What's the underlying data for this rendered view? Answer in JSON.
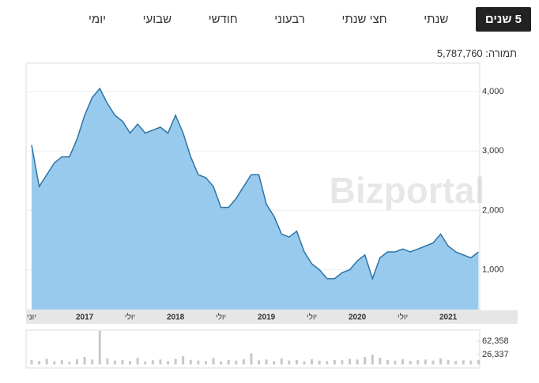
{
  "tabs": [
    {
      "label": "יומי",
      "active": false
    },
    {
      "label": "שבועי",
      "active": false
    },
    {
      "label": "חודשי",
      "active": false
    },
    {
      "label": "רבעוני",
      "active": false
    },
    {
      "label": "חצי שנתי",
      "active": false
    },
    {
      "label": "שנתי",
      "active": false
    },
    {
      "label": "5 שנים",
      "active": true
    }
  ],
  "turnover": {
    "label": "תמורה:",
    "value": "5,787,760"
  },
  "watermark": "Bizportal",
  "chart_data": [
    {
      "type": "area",
      "color": "#2f73a6",
      "fill": "#8cc4ea",
      "categories": [
        "יוני",
        null,
        null,
        null,
        null,
        null,
        null,
        "2017",
        null,
        null,
        null,
        null,
        null,
        "יולי",
        null,
        null,
        null,
        null,
        null,
        "2018",
        null,
        null,
        null,
        null,
        null,
        "יולי",
        null,
        null,
        null,
        null,
        null,
        "2019",
        null,
        null,
        null,
        null,
        null,
        "יולי",
        null,
        null,
        null,
        null,
        null,
        "2020",
        null,
        null,
        null,
        null,
        null,
        "יולי",
        null,
        null,
        null,
        null,
        null,
        "2021",
        null,
        null,
        null,
        null
      ],
      "values": [
        3100,
        2400,
        2600,
        2800,
        2900,
        2900,
        3200,
        3600,
        3900,
        4050,
        3800,
        3600,
        3500,
        3300,
        3450,
        3300,
        3350,
        3400,
        3300,
        3600,
        3300,
        2900,
        2600,
        2550,
        2400,
        2050,
        2050,
        2200,
        2400,
        2600,
        2600,
        2100,
        1900,
        1600,
        1550,
        1650,
        1300,
        1100,
        1000,
        850,
        850,
        950,
        1000,
        1150,
        1250,
        850,
        1200,
        1300,
        1300,
        1350,
        1300,
        1350,
        1400,
        1450,
        1600,
        1400,
        1300,
        1250,
        1200,
        1300
      ],
      "ylim": [
        330,
        4450
      ],
      "yticks": [
        {
          "value": 1000,
          "label": "1,000"
        },
        {
          "value": 2000,
          "label": "2,000"
        },
        {
          "value": 3000,
          "label": "3,000"
        },
        {
          "value": 4000,
          "label": "4,000"
        }
      ],
      "grid": true
    },
    {
      "type": "bar",
      "color": "#c8c8c8",
      "values": [
        12000,
        9000,
        15000,
        8000,
        11000,
        7000,
        14000,
        20000,
        13000,
        90000,
        16000,
        10000,
        12000,
        9000,
        18000,
        8000,
        11000,
        13000,
        9000,
        15000,
        22000,
        12000,
        10000,
        9000,
        17000,
        8000,
        12000,
        10000,
        14000,
        30000,
        11000,
        13000,
        9000,
        16000,
        10000,
        12000,
        8000,
        14000,
        10000,
        9000,
        12000,
        11000,
        15000,
        13000,
        20000,
        26000,
        18000,
        12000,
        10000,
        14000,
        9000,
        11000,
        13000,
        10000,
        16000,
        12000,
        9000,
        11000,
        10000,
        12000
      ],
      "ylim": [
        -9700,
        92000
      ],
      "yticks": [
        {
          "value": 26337,
          "label": "26,337"
        },
        {
          "value": 62358,
          "label": "62,358"
        }
      ]
    }
  ]
}
